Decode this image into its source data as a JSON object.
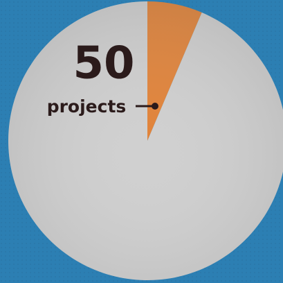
{
  "chart_data": {
    "type": "pie",
    "values": [
      6.4,
      93.6
    ],
    "colors": [
      "#e07b2c",
      "#cdcdcd"
    ],
    "annotation": {
      "number": 50,
      "label": "projects"
    }
  }
}
